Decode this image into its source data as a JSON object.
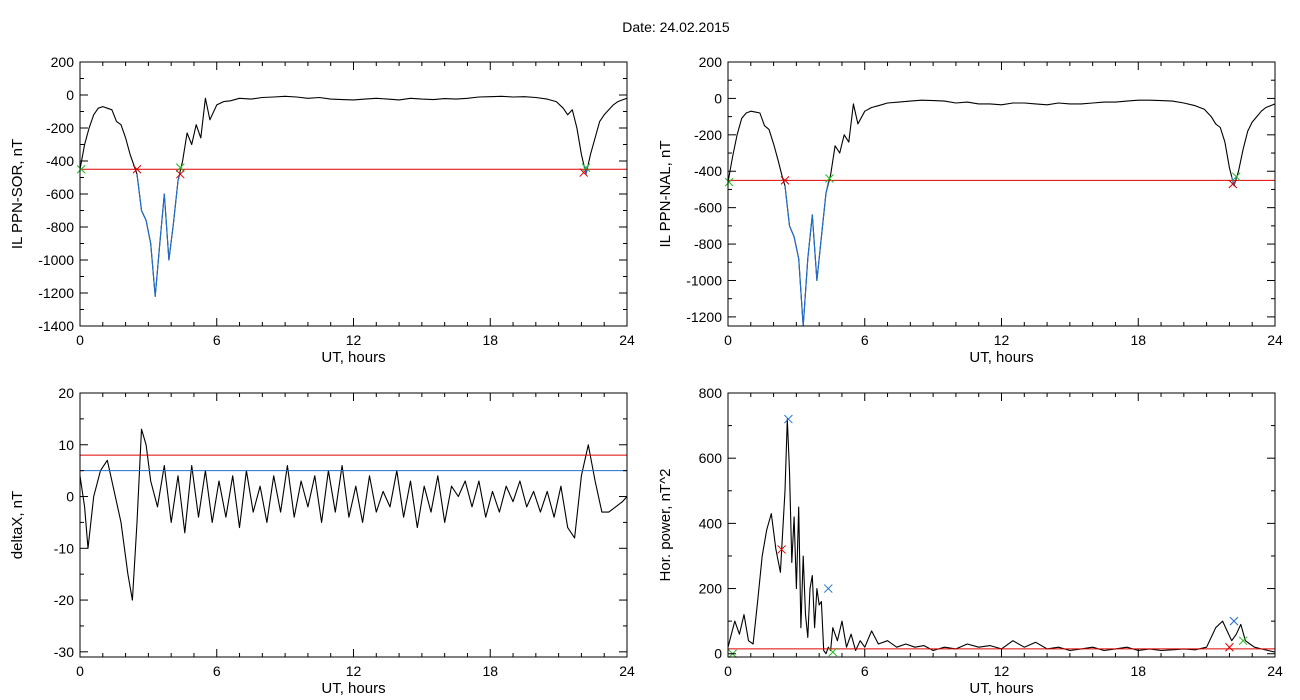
{
  "title": "Date:  24.02.2015",
  "colors": {
    "data": "#000000",
    "threshold": "#e00000",
    "second": "#1f6fd0",
    "green": "#22bb22"
  },
  "chart_data": [
    {
      "type": "line",
      "xlabel": "UT, hours",
      "ylabel": "IL PPN-SOR, nT",
      "xlim": [
        0,
        24
      ],
      "ylim": [
        -1400,
        200
      ],
      "xticks": [
        0,
        6,
        12,
        18,
        24
      ],
      "yticks": [
        200,
        0,
        -200,
        -400,
        -600,
        -800,
        -1000,
        -1200,
        -1400
      ],
      "grid": false,
      "series": [
        {
          "color": "#000000",
          "x": [
            0,
            0.2,
            0.4,
            0.6,
            0.8,
            1.0,
            1.2,
            1.4,
            1.6,
            1.8,
            2.0,
            2.2,
            2.4,
            2.5,
            2.7,
            2.9,
            3.1,
            3.3,
            3.5,
            3.7,
            3.9,
            4.1,
            4.3,
            4.5,
            4.7,
            4.9,
            5.1,
            5.3,
            5.5,
            5.7,
            6.0,
            6.3,
            6.6,
            7.0,
            7.5,
            8.0,
            8.5,
            9.0,
            9.5,
            10,
            10.5,
            11,
            11.5,
            12,
            12.5,
            13,
            13.5,
            14,
            14.5,
            15,
            15.5,
            16,
            16.5,
            17,
            17.5,
            18,
            18.5,
            19,
            19.5,
            20,
            20.5,
            20.9,
            21.2,
            21.4,
            21.6,
            21.8,
            22.0,
            22.2,
            22.4,
            22.6,
            22.8,
            23.0,
            23.2,
            23.4,
            23.6,
            23.8,
            24
          ],
          "y": [
            -450,
            -300,
            -200,
            -120,
            -80,
            -70,
            -80,
            -90,
            -160,
            -180,
            -260,
            -360,
            -440,
            -480,
            -700,
            -760,
            -900,
            -1220,
            -900,
            -600,
            -1000,
            -780,
            -520,
            -400,
            -230,
            -300,
            -180,
            -260,
            -20,
            -150,
            -60,
            -40,
            -35,
            -20,
            -25,
            -15,
            -12,
            -8,
            -12,
            -20,
            -15,
            -25,
            -28,
            -30,
            -25,
            -20,
            -25,
            -30,
            -20,
            -25,
            -28,
            -22,
            -25,
            -20,
            -12,
            -10,
            -8,
            -12,
            -10,
            -15,
            -25,
            -40,
            -80,
            -120,
            -90,
            -200,
            -360,
            -480,
            -360,
            -260,
            -160,
            -120,
            -90,
            -60,
            -40,
            -30,
            -20
          ]
        },
        {
          "color": "#1f6fd0",
          "x": [
            2.5,
            2.7,
            2.9,
            3.1,
            3.3,
            3.5,
            3.7,
            3.9,
            4.1,
            4.3,
            4.4
          ],
          "y": [
            -480,
            -700,
            -760,
            -900,
            -1220,
            -900,
            -600,
            -1000,
            -780,
            -520,
            -470
          ]
        },
        {
          "color": "#1f6fd0",
          "x": [
            22.1,
            22.2,
            22.3
          ],
          "y": [
            -420,
            -480,
            -420
          ]
        }
      ],
      "threshold": -450,
      "markers": [
        {
          "x": 0.05,
          "y": -450,
          "color": "#22bb22"
        },
        {
          "x": 2.5,
          "y": -450,
          "color": "#e00000"
        },
        {
          "x": 4.4,
          "y": -440,
          "color": "#22bb22"
        },
        {
          "x": 4.4,
          "y": -480,
          "color": "#e00000"
        },
        {
          "x": 22.2,
          "y": -440,
          "color": "#22bb22"
        },
        {
          "x": 22.1,
          "y": -470,
          "color": "#e00000"
        }
      ]
    },
    {
      "type": "line",
      "xlabel": "UT, hours",
      "ylabel": "IL PPN-NAL, nT",
      "xlim": [
        0,
        24
      ],
      "ylim": [
        -1250,
        200
      ],
      "xticks": [
        0,
        6,
        12,
        18,
        24
      ],
      "yticks": [
        200,
        0,
        -200,
        -400,
        -600,
        -800,
        -1000,
        -1200
      ],
      "grid": false,
      "series": [
        {
          "color": "#000000",
          "x": [
            0,
            0.2,
            0.4,
            0.6,
            0.8,
            1.0,
            1.2,
            1.4,
            1.6,
            1.8,
            2.0,
            2.2,
            2.4,
            2.5,
            2.7,
            2.9,
            3.1,
            3.3,
            3.5,
            3.7,
            3.9,
            4.1,
            4.3,
            4.5,
            4.7,
            4.9,
            5.1,
            5.3,
            5.5,
            5.7,
            6.0,
            6.3,
            6.6,
            7.0,
            7.5,
            8.0,
            8.5,
            9.0,
            9.5,
            10,
            10.5,
            11,
            11.5,
            12,
            12.5,
            13,
            13.5,
            14,
            14.5,
            15,
            15.5,
            16,
            16.5,
            17,
            17.5,
            18,
            18.5,
            19,
            19.5,
            20,
            20.5,
            20.9,
            21.2,
            21.4,
            21.6,
            21.8,
            22.0,
            22.2,
            22.4,
            22.6,
            22.8,
            23.0,
            23.2,
            23.4,
            23.6,
            23.8,
            24
          ],
          "y": [
            -460,
            -320,
            -200,
            -110,
            -80,
            -70,
            -75,
            -80,
            -150,
            -170,
            -250,
            -340,
            -440,
            -480,
            -700,
            -760,
            -880,
            -1250,
            -880,
            -640,
            -1000,
            -760,
            -520,
            -420,
            -260,
            -300,
            -200,
            -240,
            -30,
            -140,
            -70,
            -50,
            -40,
            -25,
            -20,
            -15,
            -10,
            -12,
            -15,
            -25,
            -20,
            -30,
            -30,
            -35,
            -25,
            -25,
            -30,
            -35,
            -25,
            -30,
            -30,
            -25,
            -20,
            -20,
            -15,
            -10,
            -10,
            -12,
            -15,
            -25,
            -40,
            -60,
            -100,
            -140,
            -160,
            -240,
            -380,
            -480,
            -400,
            -280,
            -180,
            -130,
            -100,
            -70,
            -50,
            -40,
            -30
          ]
        },
        {
          "color": "#1f6fd0",
          "x": [
            2.5,
            2.7,
            2.9,
            3.1,
            3.3,
            3.5,
            3.7,
            3.9,
            4.1,
            4.3,
            4.4
          ],
          "y": [
            -480,
            -700,
            -760,
            -880,
            -1250,
            -880,
            -640,
            -1000,
            -760,
            -520,
            -460
          ]
        },
        {
          "color": "#1f6fd0",
          "x": [
            22.1,
            22.2,
            22.3
          ],
          "y": [
            -430,
            -480,
            -430
          ]
        }
      ],
      "threshold": -450,
      "markers": [
        {
          "x": 0.05,
          "y": -460,
          "color": "#22bb22"
        },
        {
          "x": 2.5,
          "y": -450,
          "color": "#e00000"
        },
        {
          "x": 4.45,
          "y": -440,
          "color": "#22bb22"
        },
        {
          "x": 22.3,
          "y": -430,
          "color": "#22bb22"
        },
        {
          "x": 22.15,
          "y": -470,
          "color": "#e00000"
        }
      ]
    },
    {
      "type": "line",
      "xlabel": "UT, hours",
      "ylabel": "deltaX, nT",
      "xlim": [
        0,
        24
      ],
      "ylim": [
        -31,
        20
      ],
      "xticks": [
        0,
        6,
        12,
        18,
        24
      ],
      "yticks": [
        20,
        10,
        0,
        -10,
        -20,
        -30
      ],
      "grid": false,
      "series": [
        {
          "color": "#000000",
          "x": [
            0,
            0.2,
            0.35,
            0.6,
            0.9,
            1.2,
            1.5,
            1.8,
            2.1,
            2.3,
            2.5,
            2.7,
            2.9,
            3.1,
            3.4,
            3.7,
            4.0,
            4.3,
            4.6,
            4.9,
            5.2,
            5.5,
            5.8,
            6.1,
            6.4,
            6.7,
            7.0,
            7.3,
            7.6,
            7.9,
            8.2,
            8.5,
            8.8,
            9.1,
            9.4,
            9.7,
            10.0,
            10.3,
            10.6,
            10.9,
            11.2,
            11.5,
            11.8,
            12.1,
            12.4,
            12.7,
            13.0,
            13.3,
            13.6,
            13.9,
            14.2,
            14.5,
            14.8,
            15.1,
            15.4,
            15.7,
            16.0,
            16.3,
            16.6,
            16.9,
            17.2,
            17.5,
            17.8,
            18.1,
            18.4,
            18.7,
            19.0,
            19.3,
            19.6,
            19.9,
            20.2,
            20.5,
            20.8,
            21.1,
            21.4,
            21.7,
            22.0,
            22.3,
            22.6,
            22.9,
            23.2,
            23.5,
            23.8,
            24
          ],
          "y": [
            4,
            -2,
            -10,
            0,
            5,
            7,
            1,
            -5,
            -15,
            -20,
            -5,
            13,
            10,
            3,
            -2,
            6,
            -5,
            4,
            -7,
            6,
            -4,
            5,
            -5,
            3,
            -4,
            4,
            -6,
            5,
            -3,
            2,
            -5,
            4,
            -3,
            6,
            -4,
            3,
            -2,
            4,
            -5,
            5,
            -3,
            6,
            -4,
            2,
            -5,
            4,
            -3,
            1,
            -2,
            5,
            -4,
            3,
            -6,
            2,
            -3,
            4,
            -5,
            2,
            0,
            3,
            -2,
            3,
            -4,
            1,
            -3,
            2,
            -1,
            3,
            -2,
            1,
            -3,
            1,
            -4,
            2,
            -6,
            -8,
            4,
            10,
            3,
            -3,
            -3,
            -2,
            -1,
            0
          ]
        }
      ],
      "hlines": [
        {
          "y": 8,
          "color": "#e00000"
        },
        {
          "y": 5,
          "color": "#1f6fd0"
        }
      ]
    },
    {
      "type": "line",
      "xlabel": "UT, hours",
      "ylabel": "Hor. power, nT^2",
      "xlim": [
        0,
        24
      ],
      "ylim": [
        -10,
        800
      ],
      "xticks": [
        0,
        6,
        12,
        18,
        24
      ],
      "yticks": [
        800,
        600,
        400,
        200,
        0
      ],
      "grid": false,
      "series": [
        {
          "color": "#000000",
          "x": [
            0,
            0.3,
            0.5,
            0.7,
            0.9,
            1.1,
            1.3,
            1.5,
            1.7,
            1.9,
            2.1,
            2.3,
            2.5,
            2.6,
            2.7,
            2.8,
            2.9,
            3.0,
            3.1,
            3.2,
            3.3,
            3.4,
            3.5,
            3.6,
            3.7,
            3.8,
            3.9,
            4.0,
            4.1,
            4.2,
            4.3,
            4.4,
            4.5,
            4.6,
            4.8,
            5.0,
            5.2,
            5.4,
            5.6,
            5.8,
            6.0,
            6.3,
            6.6,
            7.0,
            7.4,
            7.8,
            8.2,
            8.6,
            9,
            9.5,
            10,
            10.5,
            11,
            11.5,
            12,
            12.5,
            13,
            13.5,
            14,
            14.5,
            15,
            15.5,
            16,
            16.5,
            17,
            17.5,
            18,
            18.5,
            19,
            19.5,
            20,
            20.5,
            21,
            21.4,
            21.7,
            21.9,
            22.1,
            22.3,
            22.5,
            22.7,
            22.9,
            23.1,
            23.4,
            23.7,
            24
          ],
          "y": [
            20,
            100,
            60,
            120,
            40,
            30,
            160,
            300,
            380,
            430,
            320,
            250,
            500,
            720,
            560,
            280,
            420,
            200,
            450,
            80,
            300,
            120,
            50,
            200,
            240,
            80,
            200,
            150,
            160,
            10,
            0,
            20,
            10,
            80,
            40,
            100,
            20,
            60,
            10,
            40,
            20,
            70,
            30,
            40,
            20,
            30,
            20,
            25,
            10,
            20,
            15,
            30,
            20,
            25,
            15,
            40,
            20,
            35,
            15,
            20,
            10,
            15,
            20,
            10,
            15,
            20,
            10,
            15,
            10,
            12,
            15,
            12,
            20,
            80,
            100,
            70,
            40,
            60,
            90,
            40,
            30,
            20,
            15,
            10,
            5
          ]
        }
      ],
      "threshold": 15,
      "markers": [
        {
          "x": 0.2,
          "y": 0,
          "color": "#22bb22"
        },
        {
          "x": 2.35,
          "y": 320,
          "color": "#e00000"
        },
        {
          "x": 2.65,
          "y": 720,
          "color": "#1f6fd0"
        },
        {
          "x": 4.4,
          "y": 200,
          "color": "#1f6fd0"
        },
        {
          "x": 4.6,
          "y": 5,
          "color": "#22bb22"
        },
        {
          "x": 22.2,
          "y": 100,
          "color": "#1f6fd0"
        },
        {
          "x": 22.0,
          "y": 20,
          "color": "#e00000"
        },
        {
          "x": 22.6,
          "y": 40,
          "color": "#22bb22"
        }
      ]
    }
  ]
}
